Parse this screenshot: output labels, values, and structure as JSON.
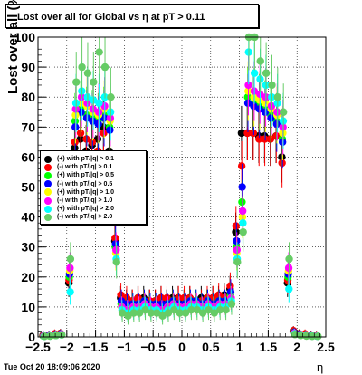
{
  "title": "Lost over all for Global vs   η at pT > 0.11",
  "footer": "Tue Oct 20 18:09:06 2020",
  "chart_data": {
    "type": "scatter",
    "xlabel": "η",
    "ylabel": "Lost over all (%)",
    "xlim": [
      -2.5,
      2.5
    ],
    "ylim": [
      0,
      100
    ],
    "x_ticks": [
      "−2.5",
      "−2",
      "−1.5",
      "−1",
      "−0.5",
      "0",
      "0.5",
      "1",
      "1.5",
      "2",
      "2.5"
    ],
    "y_ticks": [
      "0",
      "10",
      "20",
      "30",
      "40",
      "50",
      "60",
      "70",
      "80",
      "90",
      "100"
    ],
    "grid": true,
    "legend_position": "left-middle",
    "x": [
      -2.4,
      -2.3,
      -2.2,
      -2.1,
      -1.95,
      -1.85,
      -1.75,
      -1.65,
      -1.55,
      -1.45,
      -1.35,
      -1.25,
      -1.15,
      -1.05,
      -0.95,
      -0.85,
      -0.75,
      -0.65,
      -0.55,
      -0.45,
      -0.35,
      -0.25,
      -0.15,
      -0.05,
      0.05,
      0.15,
      0.25,
      0.35,
      0.45,
      0.55,
      0.65,
      0.75,
      0.85,
      0.95,
      1.05,
      1.15,
      1.25,
      1.35,
      1.45,
      1.55,
      1.65,
      1.75,
      1.85,
      1.95,
      2.05,
      2.15,
      2.25,
      2.35
    ],
    "series": [
      {
        "name": "(+) with pT/|q| > 0.1",
        "color": "#000000",
        "values": [
          0.5,
          0.5,
          0.8,
          1.0,
          18,
          63,
          66,
          62,
          64,
          66,
          70,
          62,
          32,
          13,
          12,
          12,
          13,
          13,
          12,
          12,
          13,
          12,
          13,
          13,
          12,
          13,
          12,
          13,
          12,
          13,
          13,
          14,
          16,
          35,
          68,
          68,
          68,
          67,
          67,
          66,
          67,
          60,
          18,
          2,
          1,
          0.8,
          0.5,
          0.5
        ]
      },
      {
        "name": "(-) with pT/|q| > 0.1",
        "color": "#ff0000",
        "values": [
          0.5,
          0.5,
          1.0,
          1.2,
          19,
          65,
          68,
          66,
          65,
          62,
          68,
          60,
          33,
          14,
          13,
          12,
          13,
          12,
          12,
          12,
          13,
          13,
          12,
          13,
          13,
          13,
          12,
          12,
          13,
          13,
          14,
          13,
          17,
          37,
          57,
          68,
          68,
          66,
          66,
          66,
          67,
          58,
          19,
          2,
          1,
          1.0,
          0.6,
          0.5
        ]
      },
      {
        "name": "(+) with pT/|q| > 0.5",
        "color": "#00ff00",
        "values": [
          0.3,
          0.4,
          0.6,
          1.0,
          20,
          72,
          76,
          74,
          73,
          72,
          74,
          70,
          30,
          11,
          10,
          11,
          11,
          12,
          11,
          11,
          10,
          11,
          12,
          11,
          11,
          12,
          12,
          11,
          12,
          11,
          12,
          12,
          14,
          30,
          45,
          80,
          78,
          78,
          76,
          74,
          72,
          66,
          20,
          1.5,
          0.8,
          0.6,
          0.5,
          0.3
        ]
      },
      {
        "name": "(-) with pT/|q| > 0.5",
        "color": "#0000ff",
        "values": [
          0.4,
          0.5,
          0.7,
          1.0,
          21,
          70,
          75,
          73,
          72,
          71,
          73,
          69,
          31,
          12,
          11,
          11,
          11,
          12,
          11,
          11,
          11,
          11,
          12,
          11,
          11,
          12,
          12,
          11,
          12,
          11,
          12,
          12,
          15,
          32,
          50,
          78,
          77,
          76,
          75,
          73,
          71,
          65,
          21,
          1.5,
          0.9,
          0.6,
          0.5,
          0.3
        ]
      },
      {
        "name": "(+) with pT/|q| > 1.0",
        "color": "#ffff00",
        "values": [
          0.3,
          0.3,
          0.5,
          0.8,
          22,
          74,
          78,
          77,
          75,
          74,
          76,
          72,
          28,
          10,
          9,
          10,
          10,
          11,
          10,
          10,
          9,
          10,
          11,
          10,
          10,
          11,
          11,
          10,
          11,
          10,
          11,
          11,
          13,
          28,
          40,
          82,
          80,
          79,
          78,
          76,
          74,
          68,
          22,
          1.2,
          0.7,
          0.5,
          0.4,
          0.3
        ]
      },
      {
        "name": "(-) with pT/|q| > 1.0",
        "color": "#ff00ff",
        "values": [
          0.3,
          0.4,
          0.6,
          0.9,
          23,
          76,
          80,
          78,
          76,
          75,
          77,
          73,
          29,
          10,
          9,
          10,
          10,
          11,
          10,
          10,
          9,
          10,
          11,
          10,
          10,
          11,
          11,
          10,
          11,
          10,
          11,
          11,
          13,
          29,
          42,
          84,
          82,
          81,
          80,
          77,
          75,
          70,
          23,
          1.2,
          0.7,
          0.5,
          0.4,
          0.3
        ]
      },
      {
        "name": "(+) with pT/|q| > 2.0",
        "color": "#00ffff",
        "values": [
          0.2,
          0.3,
          0.5,
          0.7,
          15,
          78,
          82,
          80,
          79,
          78,
          80,
          75,
          26,
          9,
          8,
          9,
          9,
          10,
          9,
          9,
          8,
          9,
          10,
          9,
          9,
          10,
          10,
          9,
          10,
          9,
          10,
          10,
          12,
          26,
          38,
          95,
          88,
          86,
          84,
          80,
          78,
          72,
          16,
          1.0,
          0.6,
          0.4,
          0.3,
          0.2
        ]
      },
      {
        "name": "(-) with pT/|q| > 2.0",
        "color": "#66cc66",
        "values": [
          0.2,
          0.3,
          0.5,
          0.7,
          26,
          85,
          90,
          88,
          85,
          95,
          90,
          80,
          25,
          8,
          7,
          8,
          8,
          9,
          8,
          8,
          7,
          8,
          9,
          8,
          8,
          9,
          9,
          8,
          9,
          8,
          9,
          9,
          11,
          25,
          35,
          100,
          100,
          92,
          88,
          84,
          80,
          75,
          26,
          0.8,
          0.5,
          0.3,
          0.2,
          0.2
        ]
      }
    ]
  }
}
